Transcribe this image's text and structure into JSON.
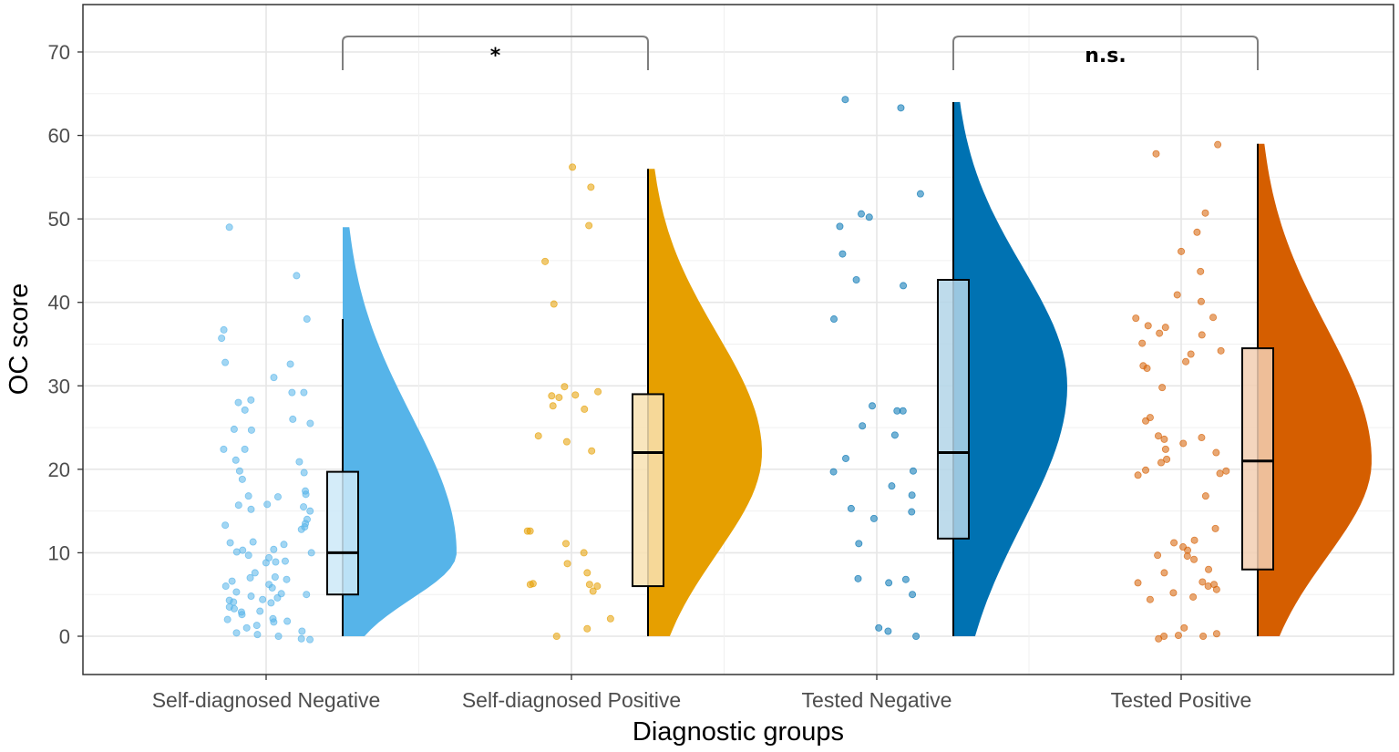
{
  "chart_data": {
    "type": "raincloud",
    "xlabel": "Diagnostic groups",
    "ylabel": "OC score",
    "ylim": [
      -4,
      75
    ],
    "yticks": [
      0,
      10,
      20,
      30,
      40,
      50,
      60,
      70
    ],
    "ytick_labels": [
      "0",
      "10",
      "20",
      "30",
      "40",
      "50",
      "60",
      "70"
    ],
    "grid": true,
    "categories": [
      "Self-diagnosed Negative",
      "Self-diagnosed Positive",
      "Tested Negative",
      "Tested Positive"
    ],
    "groups": [
      {
        "category": "Self-diagnosed Negative",
        "color": "#56B4E9",
        "box": {
          "q1": 5,
          "median": 10,
          "q3": 19.7,
          "whisker_low": 0,
          "whisker_high": 38
        },
        "density_max": 49,
        "density_peak": 10,
        "points": [
          49,
          43.2,
          38,
          36.7,
          35.7,
          32.8,
          32.6,
          31,
          29.2,
          29.2,
          28.3,
          28,
          27.1,
          26,
          25.5,
          24.8,
          24.7,
          22.4,
          22.4,
          21.1,
          20.9,
          19.8,
          19.6,
          18.8,
          17.4,
          17,
          16.8,
          16.7,
          15.8,
          15.7,
          15.5,
          15.2,
          15,
          14,
          13.5,
          13.3,
          13.1,
          12.8,
          11.3,
          11.2,
          11,
          10.4,
          10.3,
          10.1,
          10,
          9.7,
          9.4,
          9,
          8.9,
          8.8,
          7.6,
          7.1,
          7,
          6.8,
          6.6,
          6.2,
          6,
          5.8,
          5.3,
          5.1,
          5,
          4.8,
          4.6,
          4.4,
          4.3,
          4.1,
          4,
          3.5,
          3.3,
          3,
          2.9,
          2.6,
          2.1,
          2,
          1.8,
          1.7,
          1.3,
          1,
          0.6,
          0.4,
          0.2,
          0,
          -0.3,
          -0.4
        ]
      },
      {
        "category": "Self-diagnosed Positive",
        "color": "#E69F00",
        "box": {
          "q1": 6,
          "median": 22,
          "q3": 29,
          "whisker_low": 0,
          "whisker_high": 56
        },
        "density_max": 56,
        "density_peak": 22,
        "points": [
          56.2,
          53.8,
          49.2,
          44.9,
          39.8,
          29.9,
          29.3,
          28.9,
          28.8,
          28.6,
          27.6,
          27.2,
          24,
          23.3,
          22.2,
          12.6,
          12.6,
          11.1,
          10,
          8.7,
          7.6,
          6.3,
          6.2,
          6.2,
          6,
          5.4,
          2.1,
          0.9,
          0
        ]
      },
      {
        "category": "Tested Negative",
        "color": "#0072B2",
        "box": {
          "q1": 11.7,
          "median": 22,
          "q3": 42.7,
          "whisker_low": 0,
          "whisker_high": 64
        },
        "density_max": 64,
        "density_peak": 30,
        "points": [
          64.3,
          63.3,
          53,
          50.6,
          50.2,
          49.1,
          45.8,
          42.7,
          42,
          38,
          27.6,
          27,
          27,
          25.2,
          24.1,
          21.3,
          19.7,
          19.8,
          18,
          16.9,
          15.3,
          14.9,
          14.1,
          11.1,
          6.9,
          6.8,
          6.4,
          5,
          1,
          0.6,
          0
        ]
      },
      {
        "category": "Tested Positive",
        "color": "#D55E00",
        "box": {
          "q1": 8,
          "median": 21,
          "q3": 34.5,
          "whisker_low": 0,
          "whisker_high": 59
        },
        "density_max": 59,
        "density_peak": 21,
        "points": [
          58.9,
          57.8,
          50.7,
          48.4,
          46.1,
          43.7,
          40.9,
          40.1,
          38.2,
          38.1,
          37.2,
          37,
          36.3,
          36.1,
          35.1,
          34.2,
          33.8,
          32.9,
          32.4,
          32.1,
          29.8,
          26.2,
          25.8,
          24,
          23.8,
          23.6,
          23.1,
          22.4,
          22,
          21.2,
          20.8,
          19.9,
          19.8,
          19.5,
          19.3,
          16.8,
          12.9,
          11.5,
          11.2,
          10.7,
          10.3,
          9.7,
          9.6,
          9.2,
          8,
          7.6,
          6.5,
          6.4,
          6.2,
          6,
          5.6,
          5.2,
          4.7,
          4.4,
          1,
          0.3,
          0.1,
          0,
          0,
          -0.3
        ]
      }
    ],
    "comparisons": [
      {
        "from": "Self-diagnosed Negative",
        "to": "Self-diagnosed Positive",
        "label": "*"
      },
      {
        "from": "Tested Negative",
        "to": "Tested Positive",
        "label": "n.s."
      }
    ]
  }
}
